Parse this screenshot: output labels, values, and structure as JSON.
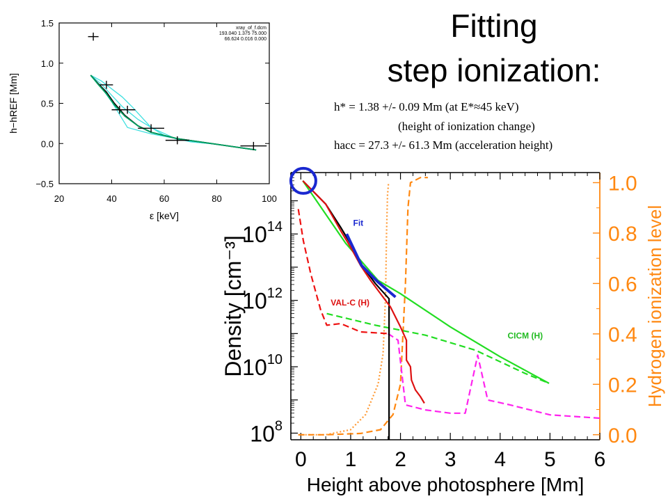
{
  "title": {
    "line1": "Fitting",
    "line2": "step ionization:"
  },
  "parameters": {
    "line1": "h* = 1.38 +/- 0.09 Mm  (at E*≈45 keV)",
    "line2": "(height of ionization change)",
    "line3": "hacc = 27.3 +/- 61.3 Mm (acceleration height)"
  },
  "chart_data": [
    {
      "type": "scatter",
      "xlabel": "ε [keV]",
      "ylabel": "h−hREF [Mm]",
      "xlim": [
        20,
        100
      ],
      "ylim": [
        -0.5,
        1.5
      ],
      "x_ticks": [
        "20",
        "40",
        "60",
        "80",
        "100"
      ],
      "y_ticks": [
        "−0.5",
        "0.0",
        "0.5",
        "1.0",
        "1.5"
      ],
      "annotation": [
        "xray_of_f.dcm",
        "193.040 1.375 75.000",
        "66.624 0.016 0.000"
      ],
      "points": [
        {
          "x": 33,
          "y": 1.33,
          "xerr": 2,
          "yerr": 0.05
        },
        {
          "x": 38,
          "y": 0.73,
          "xerr": 2.5,
          "yerr": 0.05
        },
        {
          "x": 43,
          "y": 0.42,
          "xerr": 3,
          "yerr": 0.05
        },
        {
          "x": 46,
          "y": 0.42,
          "xerr": 3,
          "yerr": 0.05
        },
        {
          "x": 55,
          "y": 0.19,
          "xerr": 5,
          "yerr": 0.05
        },
        {
          "x": 65,
          "y": 0.04,
          "xerr": 4.5,
          "yerr": 0.05
        },
        {
          "x": 94,
          "y": -0.03,
          "xerr": 5,
          "yerr": 0.05
        }
      ],
      "series": [
        {
          "color": "#000000",
          "x": [
            32,
            35,
            38,
            41,
            45,
            50,
            55,
            65,
            80,
            95
          ],
          "y": [
            0.85,
            0.74,
            0.64,
            0.5,
            0.35,
            0.22,
            0.14,
            0.06,
            -0.01,
            -0.08
          ]
        },
        {
          "color": "#00a060",
          "x": [
            32,
            35,
            38,
            41,
            45,
            50,
            55,
            65,
            80,
            95
          ],
          "y": [
            0.85,
            0.73,
            0.62,
            0.48,
            0.34,
            0.22,
            0.14,
            0.06,
            -0.01,
            -0.08
          ]
        },
        {
          "color": "#40e0e0",
          "x": [
            32,
            36,
            40,
            44,
            48,
            55,
            65,
            80,
            95
          ],
          "y": [
            0.85,
            0.78,
            0.68,
            0.58,
            0.45,
            0.2,
            0.05,
            -0.01,
            -0.08
          ]
        },
        {
          "color": "#40e0e0",
          "x": [
            32,
            36,
            40,
            46,
            55,
            65,
            80,
            95
          ],
          "y": [
            0.85,
            0.7,
            0.52,
            0.2,
            0.12,
            0.06,
            -0.01,
            -0.08
          ]
        },
        {
          "color": "#40e0e0",
          "x": [
            32,
            36,
            40,
            44,
            50,
            60,
            70,
            80,
            95
          ],
          "y": [
            0.85,
            0.74,
            0.6,
            0.46,
            0.3,
            0.1,
            0.02,
            -0.01,
            -0.08
          ]
        }
      ]
    },
    {
      "type": "line",
      "xlabel": "Height above photosphere [Mm]",
      "ylabel": "Density [cm⁻³]",
      "y2label": "Hydrogen ionization level",
      "xlim": [
        -0.2,
        6
      ],
      "ylim_log10": [
        7.8,
        15.85
      ],
      "y2lim": [
        -0.02,
        1.04
      ],
      "x_ticks": [
        "0",
        "1",
        "2",
        "3",
        "4",
        "5",
        "6"
      ],
      "y_ticks": [
        "10^8",
        "10^10",
        "10^12",
        "10^14"
      ],
      "y2_ticks": [
        "0.0",
        "0.2",
        "0.4",
        "0.6",
        "0.8",
        "1.0"
      ],
      "labels": {
        "fit": "Fit",
        "valc": "VAL-C (H)",
        "cicm": "CICM (H)"
      },
      "series": [
        {
          "name": "Fit",
          "color": "#1a28d0",
          "style": "solid",
          "axis": "density",
          "x": [
            0.92,
            1.22,
            1.55,
            1.9
          ],
          "y_log10": [
            14.0,
            13.05,
            12.55,
            12.1
          ]
        },
        {
          "name": "CICM (H)",
          "color": "#22dd22",
          "style": "solid",
          "axis": "density",
          "x": [
            0.04,
            0.9,
            1.55,
            2.0,
            3.0,
            4.0,
            4.98
          ],
          "y_log10": [
            15.6,
            13.72,
            12.6,
            12.2,
            11.2,
            10.3,
            9.5
          ]
        },
        {
          "name": "",
          "color": "#000000",
          "style": "solid",
          "axis": "density",
          "x": [
            0.04,
            0.5,
            0.8,
            1.0,
            1.2,
            1.5,
            1.77,
            1.77
          ],
          "y_log10": [
            15.6,
            14.9,
            14.2,
            13.7,
            13.1,
            12.5,
            12.05,
            7.8
          ]
        },
        {
          "name": "VAL-C (H)",
          "color": "#dd1111",
          "style": "solid",
          "axis": "density",
          "x": [
            0.04,
            0.5,
            0.8,
            1.0,
            1.2,
            1.4,
            1.6,
            1.8,
            2.0,
            2.12,
            2.12,
            2.2,
            2.22,
            2.3,
            2.4,
            2.48
          ],
          "y_log10": [
            15.6,
            14.9,
            14.1,
            13.6,
            13.05,
            12.6,
            12.2,
            11.8,
            11.2,
            10.8,
            10.2,
            10.0,
            9.6,
            9.3,
            9.1,
            8.9
          ]
        },
        {
          "name": "",
          "color": "#ee1111",
          "style": "dashed",
          "axis": "density",
          "x": [
            -0.05,
            0.05,
            0.2,
            0.4,
            0.52,
            0.8,
            1.2,
            1.75
          ],
          "y_log10": [
            14.75,
            13.8,
            12.8,
            11.7,
            11.25,
            11.3,
            11.05,
            11.0
          ]
        },
        {
          "name": "",
          "color": "#22dd22",
          "style": "dashed",
          "axis": "density",
          "x": [
            0.52,
            1.5,
            2.5,
            3.5,
            4.5,
            4.98
          ],
          "y_log10": [
            11.6,
            11.25,
            10.95,
            10.5,
            9.8,
            9.5
          ]
        },
        {
          "name": "",
          "color": "#ff22ee",
          "style": "dashed",
          "axis": "density",
          "x": [
            1.75,
            1.95,
            2.1,
            2.5,
            3.0,
            3.3,
            3.55,
            3.75,
            4.2,
            5.0,
            6.0
          ],
          "y_log10": [
            11.0,
            10.8,
            8.85,
            8.7,
            8.6,
            8.6,
            10.35,
            9.0,
            8.85,
            8.55,
            8.45
          ]
        },
        {
          "name": "",
          "color": "#ff9933",
          "style": "dotted",
          "axis": "ionization",
          "x": [
            -0.05,
            0.5,
            1.0,
            1.3,
            1.55,
            1.65,
            1.7,
            1.72,
            1.74,
            1.76
          ],
          "y": [
            0.0,
            0.0,
            0.02,
            0.08,
            0.2,
            0.32,
            0.55,
            0.8,
            0.95,
            1.0
          ]
        },
        {
          "name": "",
          "color": "#ff8811",
          "style": "dashed",
          "axis": "ionization",
          "x": [
            -0.05,
            0.5,
            1.2,
            1.6,
            1.85,
            2.0,
            2.1,
            2.15,
            2.2,
            2.4,
            2.55
          ],
          "y": [
            0.0,
            0.0,
            0.005,
            0.02,
            0.08,
            0.2,
            0.6,
            0.9,
            1.0,
            1.02,
            1.02
          ]
        }
      ]
    }
  ]
}
